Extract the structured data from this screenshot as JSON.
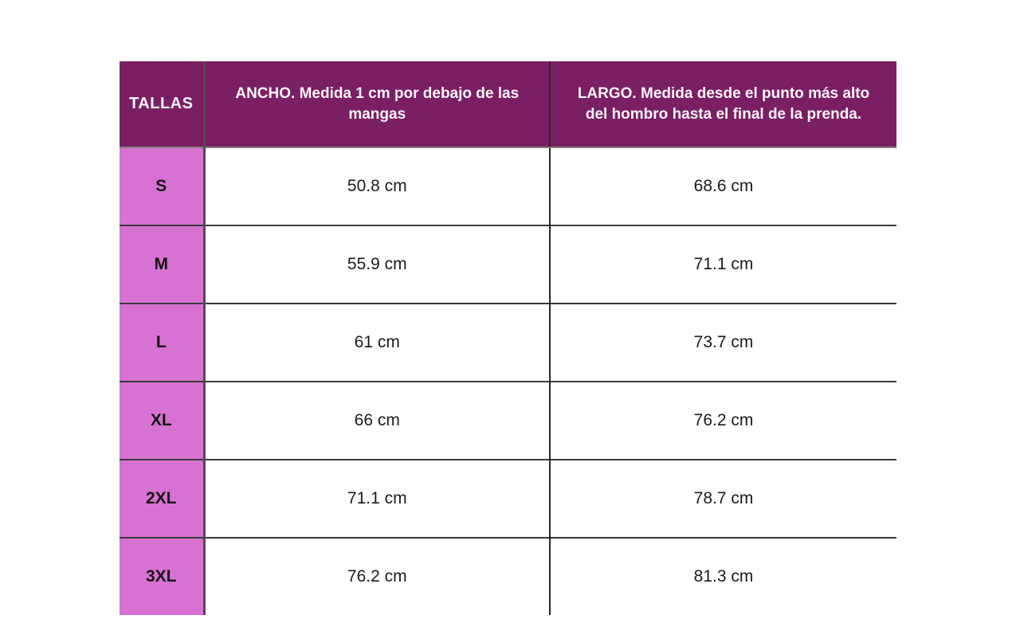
{
  "page": {
    "background": "#ffffff"
  },
  "colors": {
    "header_bg": "#7a1f63",
    "header_text": "#fbf4fa",
    "size_column_bg": "#d772d2",
    "row_bg": "#ffffff",
    "row_border": "#3a3a3a",
    "header_bottom_border": "#828282",
    "column_divider": "#262626",
    "value_text": "#1b1b1b"
  },
  "chart_data": {
    "type": "table",
    "title": "",
    "units": "cm",
    "columns": [
      "TALLAS",
      "ANCHO. Medida 1 cm por debajo de las mangas",
      "LARGO. Medida desde el punto más alto del hombro hasta el final de la prenda."
    ],
    "rows": [
      [
        "S",
        "50.8 cm",
        "68.6 cm"
      ],
      [
        "M",
        "55.9 cm",
        "71.1 cm"
      ],
      [
        "L",
        "61 cm",
        "73.7 cm"
      ],
      [
        "XL",
        "66 cm",
        "76.2 cm"
      ],
      [
        "2XL",
        "71.1 cm",
        "78.7 cm"
      ],
      [
        "3XL",
        "76.2 cm",
        "81.3 cm"
      ]
    ]
  }
}
